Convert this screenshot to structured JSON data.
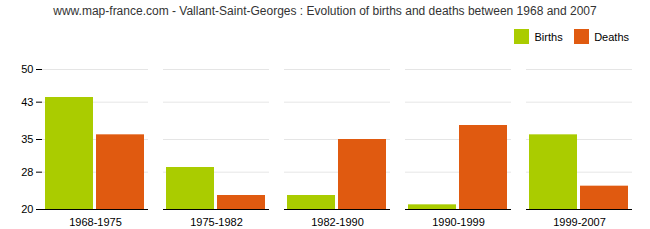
{
  "chart_data": {
    "type": "bar",
    "title": "www.map-france.com - Vallant-Saint-Georges : Evolution of births and deaths between 1968 and 2007",
    "categories": [
      "1968-1975",
      "1975-1982",
      "1982-1990",
      "1990-1999",
      "1999-2007"
    ],
    "series": [
      {
        "name": "Births",
        "color": "#aacc00",
        "values": [
          44,
          29,
          23,
          21,
          36
        ]
      },
      {
        "name": "Deaths",
        "color": "#e05a10",
        "values": [
          36,
          23,
          35,
          38,
          25
        ]
      }
    ],
    "ylim": [
      20,
      50
    ],
    "yticks": [
      20,
      28,
      35,
      43,
      50
    ],
    "grid": true,
    "legend": "upper right"
  }
}
